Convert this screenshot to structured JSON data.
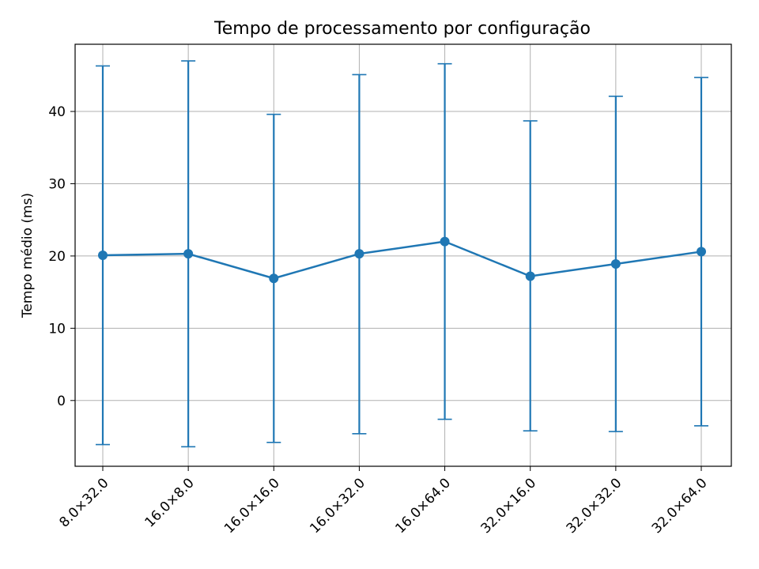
{
  "chart_data": {
    "type": "line",
    "title": "Tempo de processamento por configuração",
    "xlabel": "",
    "ylabel": "Tempo médio (ms)",
    "categories": [
      "8.0×32.0",
      "16.0×8.0",
      "16.0×16.0",
      "16.0×32.0",
      "16.0×64.0",
      "32.0×16.0",
      "32.0×32.0",
      "32.0×64.0"
    ],
    "series": [
      {
        "values": [
          20.1,
          20.3,
          16.9,
          20.3,
          22.0,
          17.2,
          18.9,
          20.6
        ],
        "err_low": [
          -6.1,
          -6.4,
          -5.8,
          -4.6,
          -2.6,
          -4.2,
          -4.3,
          -3.5
        ],
        "err_high": [
          46.3,
          47.0,
          39.6,
          45.1,
          46.6,
          38.7,
          42.1,
          44.7
        ],
        "color": "#1f77b4"
      }
    ],
    "yticks": [
      0,
      10,
      20,
      30,
      40
    ],
    "ylim": [
      -9.1,
      49.3
    ],
    "grid": true,
    "legend": "none"
  }
}
